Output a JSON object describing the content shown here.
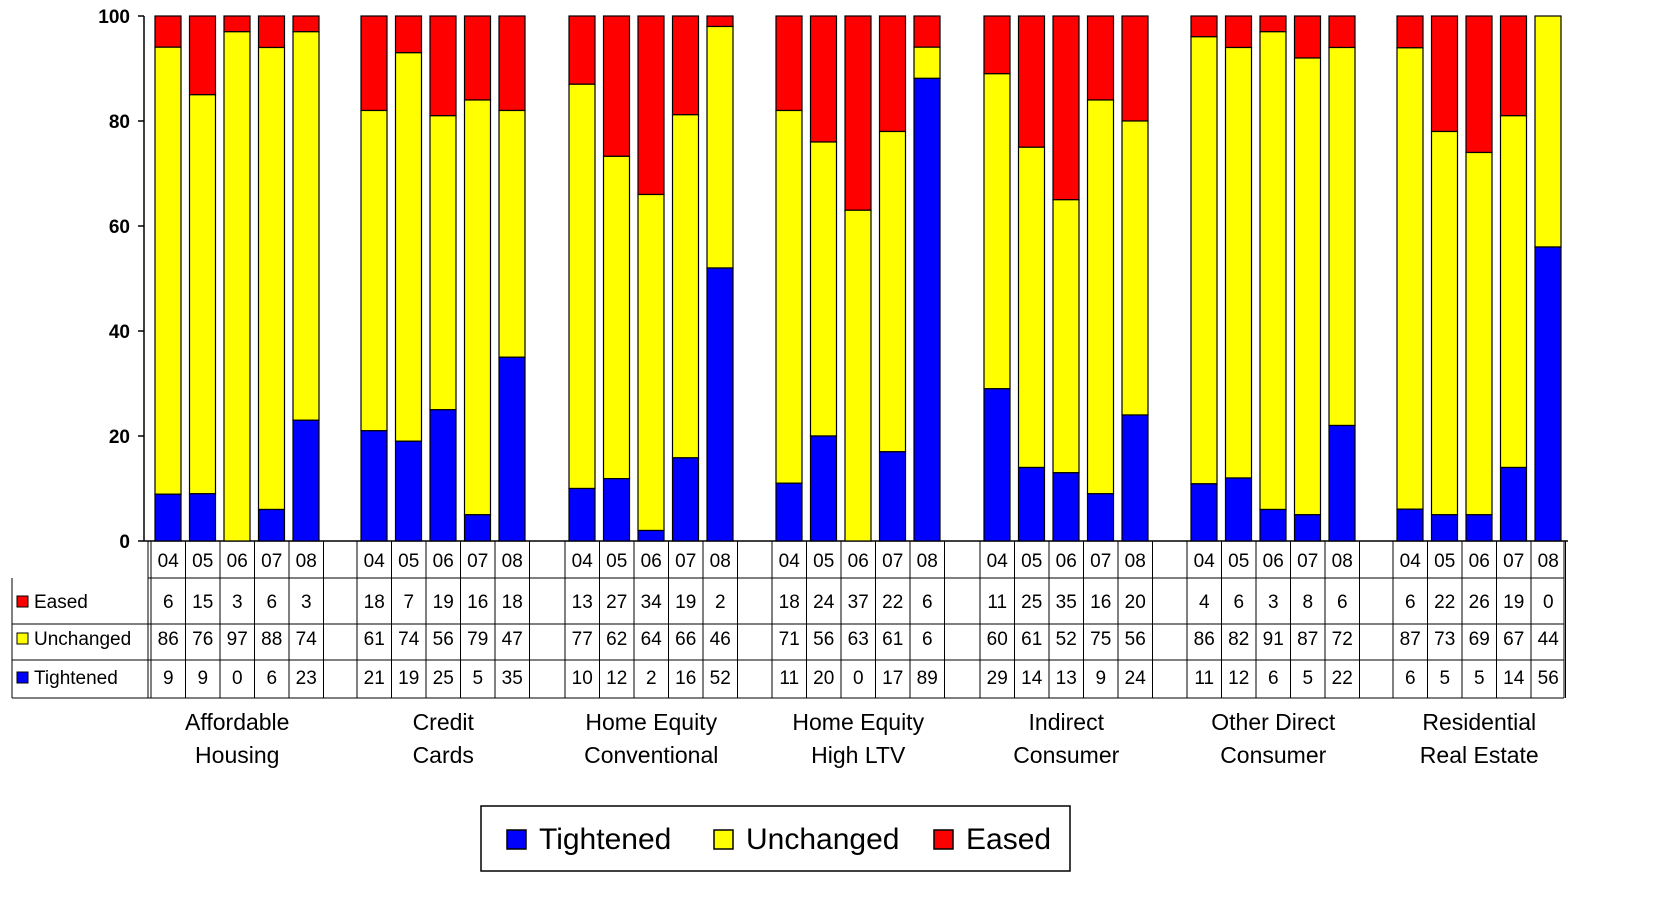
{
  "chart_data": {
    "type": "bar",
    "stacked": true,
    "ylim": [
      0,
      100
    ],
    "yticks": [
      0,
      20,
      40,
      60,
      80,
      100
    ],
    "grid": false,
    "legend_placement": "bottom-center",
    "groups": [
      {
        "label": [
          "Affordable",
          "Housing"
        ],
        "years": [
          "04",
          "05",
          "06",
          "07",
          "08"
        ],
        "eased": [
          6,
          15,
          3,
          6,
          3
        ],
        "unchanged": [
          86,
          76,
          97,
          88,
          74
        ],
        "tightened": [
          9,
          9,
          0,
          6,
          23
        ]
      },
      {
        "label": [
          "Credit",
          "Cards"
        ],
        "years": [
          "04",
          "05",
          "06",
          "07",
          "08"
        ],
        "eased": [
          18,
          7,
          19,
          16,
          18
        ],
        "unchanged": [
          61,
          74,
          56,
          79,
          47
        ],
        "tightened": [
          21,
          19,
          25,
          5,
          35
        ]
      },
      {
        "label": [
          "Home Equity",
          "Conventional"
        ],
        "years": [
          "04",
          "05",
          "06",
          "07",
          "08"
        ],
        "eased": [
          13,
          27,
          34,
          19,
          2
        ],
        "unchanged": [
          77,
          62,
          64,
          66,
          46
        ],
        "tightened": [
          10,
          12,
          2,
          16,
          52
        ]
      },
      {
        "label": [
          "Home Equity",
          "High LTV"
        ],
        "years": [
          "04",
          "05",
          "06",
          "07",
          "08"
        ],
        "eased": [
          18,
          24,
          37,
          22,
          6
        ],
        "unchanged": [
          71,
          56,
          63,
          61,
          6
        ],
        "tightened": [
          11,
          20,
          0,
          17,
          89
        ]
      },
      {
        "label": [
          "Indirect",
          "Consumer"
        ],
        "years": [
          "04",
          "05",
          "06",
          "07",
          "08"
        ],
        "eased": [
          11,
          25,
          35,
          16,
          20
        ],
        "unchanged": [
          60,
          61,
          52,
          75,
          56
        ],
        "tightened": [
          29,
          14,
          13,
          9,
          24
        ]
      },
      {
        "label": [
          "Other Direct",
          "Consumer"
        ],
        "years": [
          "04",
          "05",
          "06",
          "07",
          "08"
        ],
        "eased": [
          4,
          6,
          3,
          8,
          6
        ],
        "unchanged": [
          86,
          82,
          91,
          87,
          72
        ],
        "tightened": [
          11,
          12,
          6,
          5,
          22
        ]
      },
      {
        "label": [
          "Residential",
          "Real Estate"
        ],
        "years": [
          "04",
          "05",
          "06",
          "07",
          "08"
        ],
        "eased": [
          6,
          22,
          26,
          19,
          0
        ],
        "unchanged": [
          87,
          73,
          69,
          67,
          44
        ],
        "tightened": [
          6,
          5,
          5,
          14,
          56
        ]
      }
    ],
    "series": [
      {
        "key": "tightened",
        "name": "Tightened",
        "color": "#0000ff"
      },
      {
        "key": "unchanged",
        "name": "Unchanged",
        "color": "#ffff00"
      },
      {
        "key": "eased",
        "name": "Eased",
        "color": "#ff0000"
      }
    ],
    "table_rows": [
      {
        "key": "eased",
        "name": "Eased"
      },
      {
        "key": "unchanged",
        "name": "Unchanged"
      },
      {
        "key": "tightened",
        "name": "Tightened"
      }
    ]
  }
}
